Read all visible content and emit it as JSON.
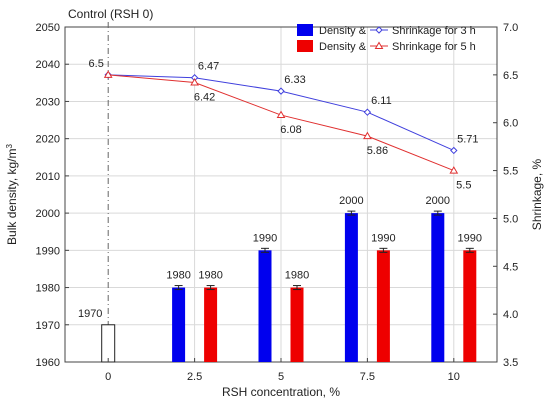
{
  "chart_data": {
    "type": "bar",
    "annotation": "Control (RSH 0)",
    "xlabel": "RSH concentration, %",
    "ylabel_left_main": "Bulk density, kg/m",
    "ylabel_left_sup": "3",
    "ylabel_right": "Shrinkage, %",
    "categories": [
      "0",
      "2.5",
      "5",
      "7.5",
      "10"
    ],
    "ylim_left": [
      1960,
      2050
    ],
    "ylim_right": [
      3.5,
      7.0
    ],
    "yticks_left": [
      1960,
      1970,
      1980,
      1990,
      2000,
      2010,
      2020,
      2030,
      2040,
      2050
    ],
    "yticks_right": [
      "3.5",
      "4.0",
      "4.5",
      "5.0",
      "5.5",
      "6.0",
      "6.5",
      "7.0"
    ],
    "grid": true,
    "legend_position": "top-right",
    "control_bar": {
      "value": 1970,
      "label": "1970",
      "color": "#ffffff"
    },
    "bars": [
      {
        "name": "Density &",
        "color": "#0000ee",
        "values": [
          null,
          1980,
          1990,
          2000,
          2000
        ],
        "labels": [
          "",
          "1980",
          "1990",
          "2000",
          "2000"
        ]
      },
      {
        "name": "Density &",
        "color": "#ee0000",
        "values": [
          null,
          1980,
          1980,
          1990,
          1990
        ],
        "labels": [
          "",
          "1980",
          "1980",
          "1990",
          "1990"
        ]
      }
    ],
    "lines": [
      {
        "name": "Shrinkage for 3 h",
        "color": "#4040dd",
        "marker": "diamond",
        "values": [
          6.5,
          6.47,
          6.33,
          6.11,
          5.71
        ],
        "labels": [
          "6.5",
          "6.47",
          "6.33",
          "6.11",
          "5.71"
        ]
      },
      {
        "name": "Shrinkage for 5 h",
        "color": "#e03030",
        "marker": "triangle",
        "values": [
          6.5,
          6.42,
          6.08,
          5.86,
          5.5
        ],
        "labels": [
          "",
          "6.42",
          "6.08",
          "5.86",
          "5.5"
        ]
      }
    ]
  }
}
